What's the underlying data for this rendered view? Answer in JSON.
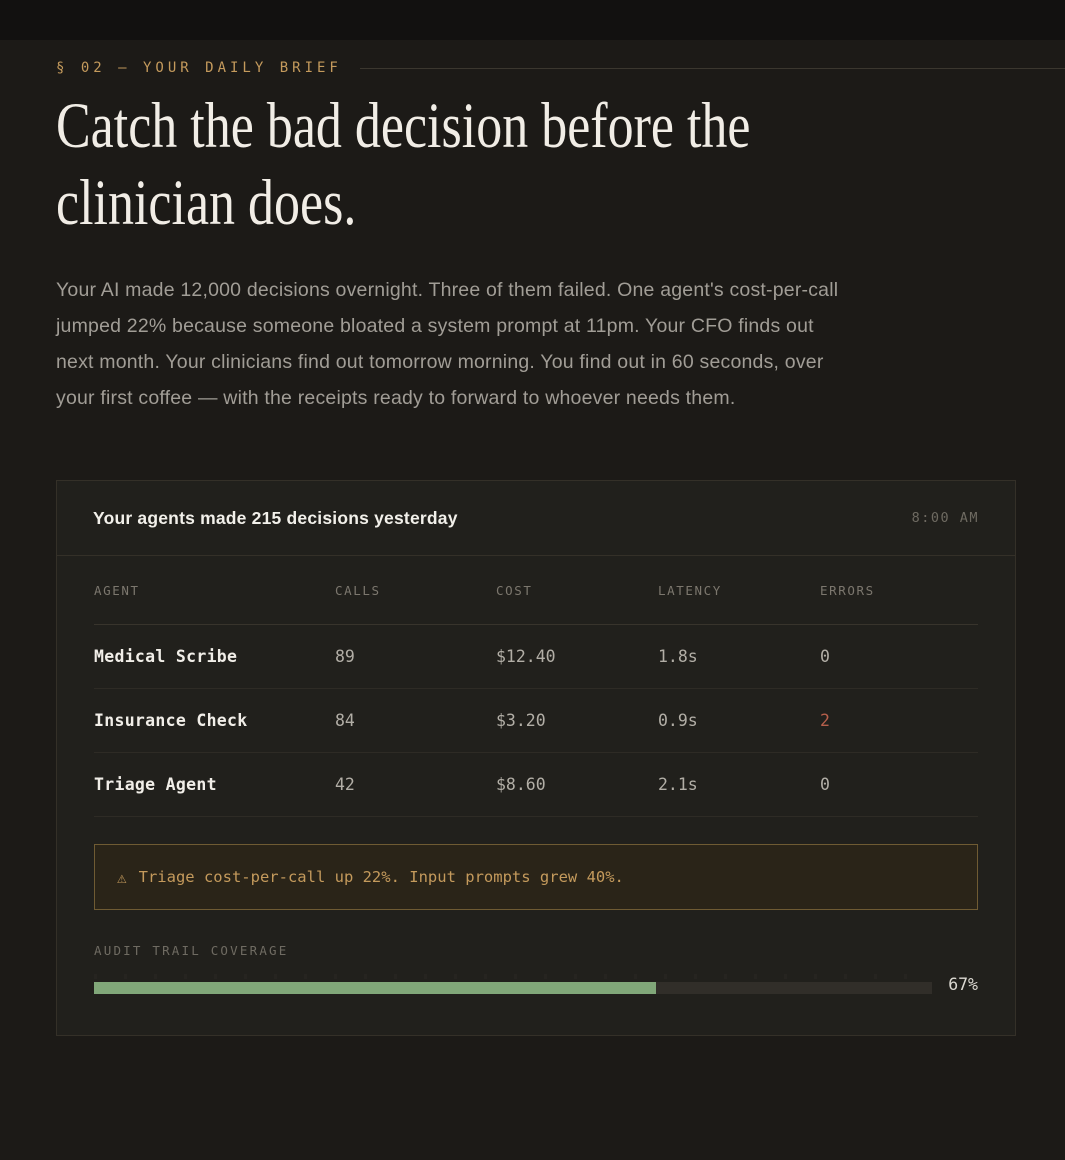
{
  "section": {
    "label": "§ 02 — YOUR DAILY BRIEF"
  },
  "heading": {
    "line1": "Catch the bad decision before the",
    "line2": "clinician does."
  },
  "intro": "Your AI made 12,000 decisions overnight. Three of them failed. One agent's cost-per-call jumped 22% because someone bloated a system prompt at 11pm. Your CFO finds out next month. Your clinicians find out tomorrow morning. You find out in 60 seconds, over your first coffee — with the receipts ready to forward to whoever needs them.",
  "brief_card": {
    "title": "Your agents made 215 decisions yesterday",
    "timestamp": "8:00 AM",
    "table": {
      "columns": [
        "AGENT",
        "CALLS",
        "COST",
        "LATENCY",
        "ERRORS"
      ],
      "rows": [
        {
          "agent": "Medical Scribe",
          "calls": "89",
          "cost": "$12.40",
          "latency": "1.8s",
          "errors": "0",
          "errors_alert": false
        },
        {
          "agent": "Insurance Check",
          "calls": "84",
          "cost": "$3.20",
          "latency": "0.9s",
          "errors": "2",
          "errors_alert": true
        },
        {
          "agent": "Triage Agent",
          "calls": "42",
          "cost": "$8.60",
          "latency": "2.1s",
          "errors": "0",
          "errors_alert": false
        }
      ]
    },
    "alert": {
      "icon": "⚠",
      "text": "Triage cost-per-call up 22%. Input prompts grew 40%."
    },
    "audit": {
      "label": "AUDIT TRAIL COVERAGE",
      "percent": 67,
      "percent_label": "67%"
    }
  },
  "colors": {
    "page_bg": "#1c1a17",
    "band_bg": "#121110",
    "accent_gold": "#c49a5c",
    "alert_red": "#b65f4b",
    "progress_green": "#81a779"
  }
}
